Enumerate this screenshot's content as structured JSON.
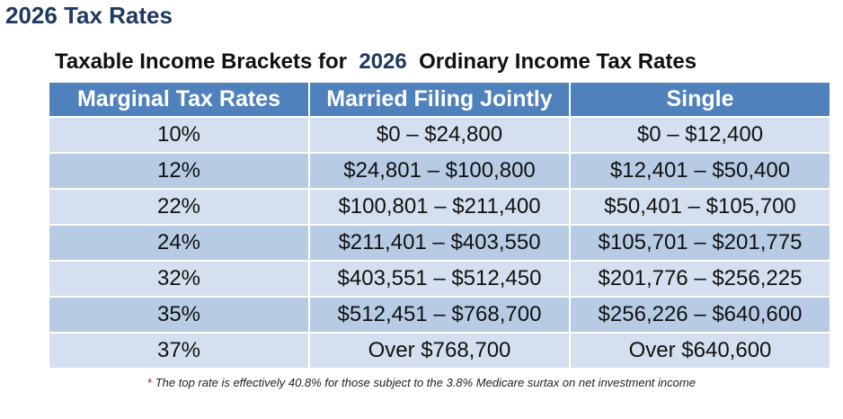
{
  "page_title": "2026 Tax Rates",
  "table_title": {
    "prefix": "Taxable Income Brackets for  ",
    "year": "2026",
    "suffix": "  Ordinary Income Tax Rates"
  },
  "columns": [
    "Marginal Tax Rates",
    "Married Filing Jointly",
    "Single"
  ],
  "rows": [
    [
      "10%",
      "$0 – $24,800",
      "$0 – $12,400"
    ],
    [
      "12%",
      "$24,801 –  $100,800",
      "$12,401 – $50,400"
    ],
    [
      "22%",
      "$100,801 – $211,400",
      "$50,401 – $105,700"
    ],
    [
      "24%",
      "$211,401 – $403,550",
      "$105,701 – $201,775"
    ],
    [
      "32%",
      "$403,551 – $512,450",
      "$201,776 – $256,225"
    ],
    [
      "35%",
      "$512,451 – $768,700",
      "$256,226 – $640,600"
    ],
    [
      "37%",
      "Over $768,700",
      "Over $640,600"
    ]
  ],
  "footnote": {
    "marker": "*",
    "text": " The top rate is effectively 40.8% for those subject to the 3.8% Medicare surtax on net investment income"
  },
  "colors": {
    "title": "#1f3864",
    "header_bg": "#4f81bd",
    "row_light": "#d4e0ef",
    "row_dark": "#b7cce4",
    "footnote_marker": "#cc0000"
  }
}
